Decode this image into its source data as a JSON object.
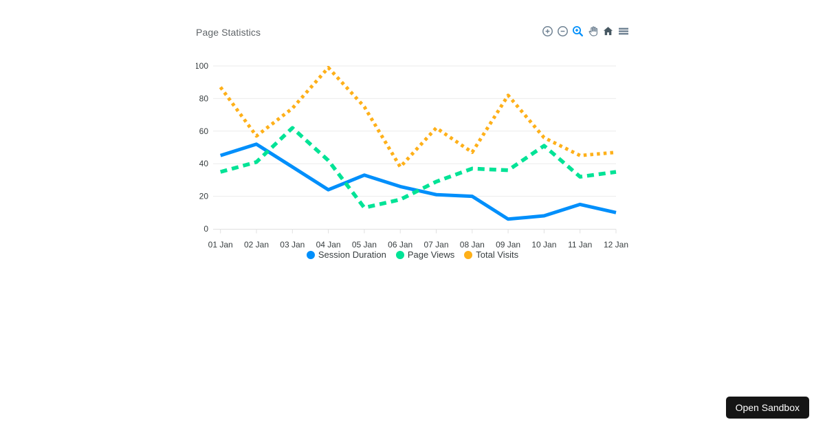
{
  "page": {
    "background": "#ffffff"
  },
  "chart": {
    "title": "Page Statistics",
    "toolbar": {
      "icons": [
        {
          "name": "zoom-in-icon",
          "active": false
        },
        {
          "name": "zoom-out-icon",
          "active": false
        },
        {
          "name": "selection-zoom-icon",
          "active": true
        },
        {
          "name": "pan-icon",
          "active": false
        },
        {
          "name": "reset-zoom-home-icon",
          "active": false
        },
        {
          "name": "menu-icon",
          "active": false
        }
      ],
      "icon_color": "#6E8192",
      "active_icon_color": "#008FFB",
      "home_icon_color": "#475862"
    },
    "axis_style": {
      "label_color": "#373d3f",
      "grid_color": "#ebebeb",
      "axis_border_color": "#e0e0e0",
      "title_color": "#5f6468"
    }
  },
  "chart_data": {
    "type": "line",
    "title": "Page Statistics",
    "categories": [
      "01 Jan",
      "02 Jan",
      "03 Jan",
      "04 Jan",
      "05 Jan",
      "06 Jan",
      "07 Jan",
      "08 Jan",
      "09 Jan",
      "10 Jan",
      "11 Jan",
      "12 Jan"
    ],
    "series": [
      {
        "name": "Session Duration",
        "color": "#008FFB",
        "line_style": "solid",
        "values": [
          45,
          52,
          38,
          24,
          33,
          26,
          21,
          20,
          6,
          8,
          15,
          10
        ]
      },
      {
        "name": "Page Views",
        "color": "#00E396",
        "line_style": "dashed",
        "values": [
          35,
          41,
          62,
          42,
          13,
          18,
          29,
          37,
          36,
          51,
          32,
          35
        ]
      },
      {
        "name": "Total Visits",
        "color": "#FEB019",
        "line_style": "dotted",
        "values": [
          87,
          57,
          74,
          99,
          75,
          38,
          62,
          47,
          82,
          56,
          45,
          47
        ]
      }
    ],
    "xlabel": "",
    "ylabel": "",
    "ylim": [
      0,
      100
    ],
    "yticks": [
      0,
      20,
      40,
      60,
      80,
      100
    ],
    "grid": "horizontal",
    "legend_position": "bottom"
  },
  "sandbox_button": {
    "label": "Open Sandbox",
    "background": "#151515",
    "text_color": "#ffffff"
  }
}
